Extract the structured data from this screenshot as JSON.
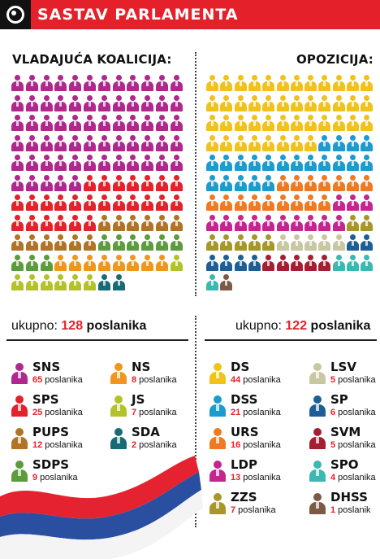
{
  "header": {
    "title": "SASTAV PARLAMENTA"
  },
  "coalition": {
    "title": "VLADAJUĆA KOALICIJA:",
    "total_prefix": "ukupno:",
    "total_number": "128",
    "total_suffix": "poslanika",
    "parties": [
      {
        "name": "SNS",
        "count": "65",
        "unit": "poslanika",
        "color": "#b0278d",
        "seats": 65
      },
      {
        "name": "SPS",
        "count": "25",
        "unit": "poslanika",
        "color": "#e3232b",
        "seats": 25
      },
      {
        "name": "PUPS",
        "count": "12",
        "unit": "poslanika",
        "color": "#b07424",
        "seats": 12
      },
      {
        "name": "SDPS",
        "count": "9",
        "unit": "poslanika",
        "color": "#5c9c3c",
        "seats": 9
      },
      {
        "name": "NS",
        "count": "8",
        "unit": "poslanika",
        "color": "#f0951f",
        "seats": 8
      },
      {
        "name": "JS",
        "count": "7",
        "unit": "poslanika",
        "color": "#b3c22b",
        "seats": 7
      },
      {
        "name": "SDA",
        "count": "2",
        "unit": "poslanika",
        "color": "#186b74",
        "seats": 2
      }
    ]
  },
  "opposition": {
    "title": "OPOZICIJA:",
    "total_prefix": "ukupno:",
    "total_number": "122",
    "total_suffix": "poslanika",
    "parties": [
      {
        "name": "DS",
        "count": "44",
        "unit": "poslanika",
        "color": "#f1c219",
        "seats": 44
      },
      {
        "name": "DSS",
        "count": "21",
        "unit": "poslanika",
        "color": "#1a9ccf",
        "seats": 21
      },
      {
        "name": "URS",
        "count": "16",
        "unit": "poslanika",
        "color": "#ef7a22",
        "seats": 16
      },
      {
        "name": "LDP",
        "count": "13",
        "unit": "poslanika",
        "color": "#c4258f",
        "seats": 13
      },
      {
        "name": "ZZS",
        "count": "7",
        "unit": "poslanika",
        "color": "#a79628",
        "seats": 7
      },
      {
        "name": "LSV",
        "count": "5",
        "unit": "poslanika",
        "color": "#c9c7a2",
        "seats": 5
      },
      {
        "name": "SP",
        "count": "6",
        "unit": "poslanika",
        "color": "#1d5f94",
        "seats": 6
      },
      {
        "name": "SVM",
        "count": "5",
        "unit": "poslanika",
        "color": "#a51f32",
        "seats": 5
      },
      {
        "name": "SPO",
        "count": "4",
        "unit": "poslanika",
        "color": "#3cb8b3",
        "seats": 4
      },
      {
        "name": "DHSS",
        "count": "1",
        "unit": "poslanik",
        "color": "#7d5a45",
        "seats": 1
      }
    ]
  },
  "colors": {
    "accent": "#e4212b",
    "flag_red": "#e52330",
    "flag_blue": "#2a4ea0"
  }
}
